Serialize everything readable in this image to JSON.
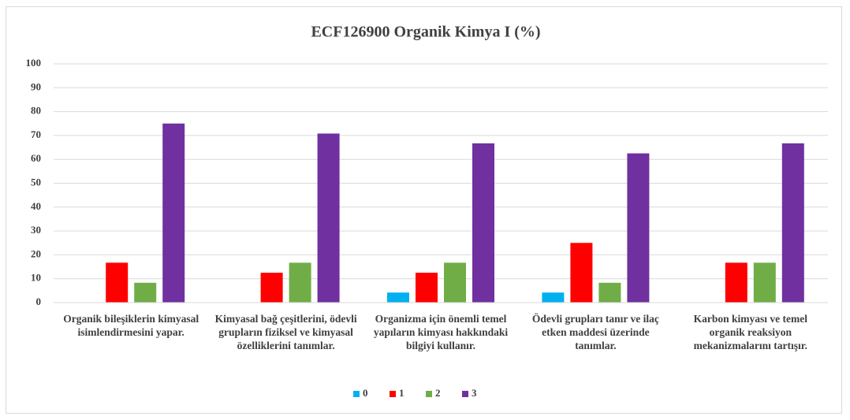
{
  "chart_data": {
    "type": "bar",
    "title": "ECF126900 Organik Kimya I (%)",
    "categories": [
      "Organik bileşiklerin kimyasal isimlendirmesini yapar.",
      "Kimyasal bağ çeşitlerini, ödevli grupların fiziksel ve kimyasal özelliklerini tanımlar.",
      "Organizma için önemli temel yapıların kimyası hakkındaki bilgiyi kullanır.",
      "Ödevli grupları tanır ve ilaç etken maddesi üzerinde tanımlar.",
      "Karbon kimyası ve temel organik reaksiyon mekanizmalarını tartışır."
    ],
    "series": [
      {
        "name": "0",
        "color": "#00b0f0",
        "values": [
          0,
          0,
          4.2,
          4.2,
          0
        ]
      },
      {
        "name": "1",
        "color": "#ff0000",
        "values": [
          16.7,
          12.5,
          12.5,
          25,
          16.7
        ]
      },
      {
        "name": "2",
        "color": "#70ad47",
        "values": [
          8.3,
          16.7,
          16.7,
          8.3,
          16.7
        ]
      },
      {
        "name": "3",
        "color": "#7030a0",
        "values": [
          75,
          70.8,
          66.7,
          62.5,
          66.7
        ]
      }
    ],
    "ylim": [
      0,
      100
    ],
    "yticks": [
      0,
      10,
      20,
      30,
      40,
      50,
      60,
      70,
      80,
      90,
      100
    ],
    "grid": true,
    "legend": "bottom"
  }
}
